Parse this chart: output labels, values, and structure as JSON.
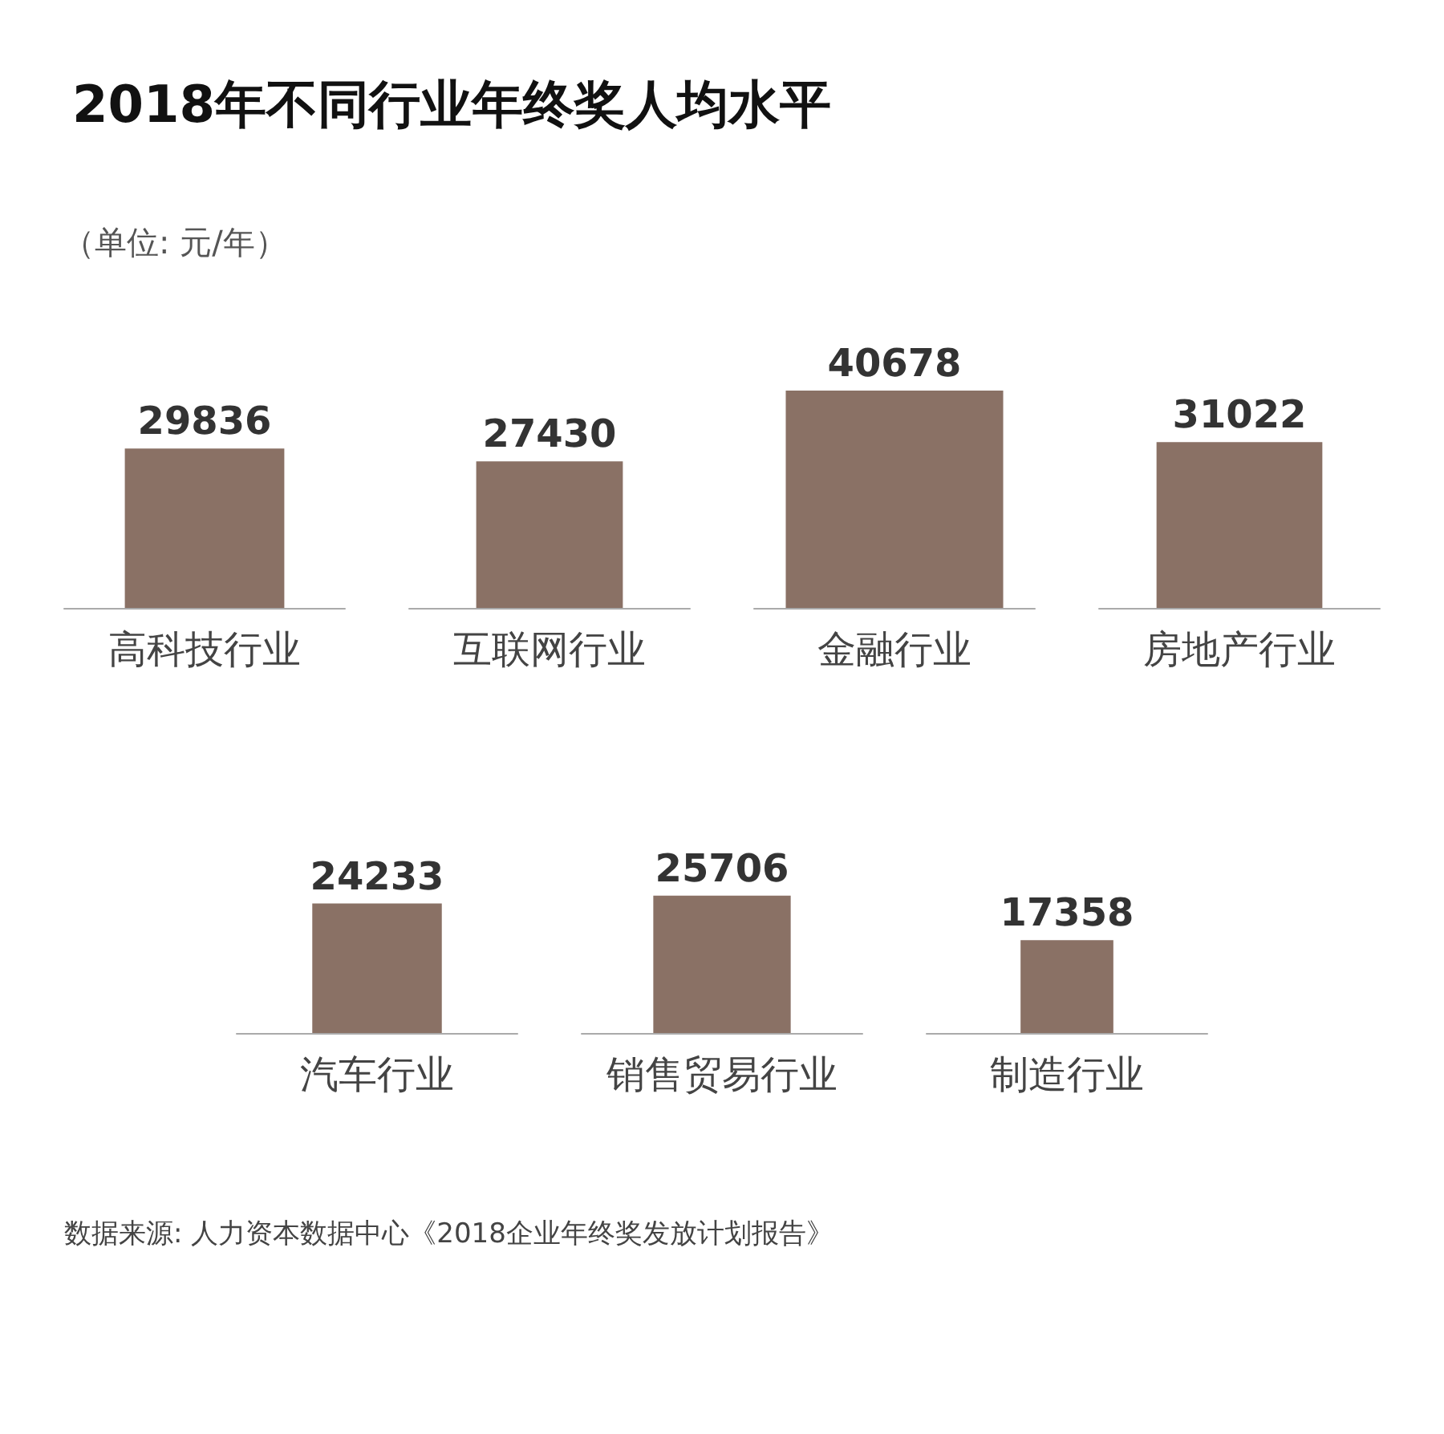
{
  "chart_data": [
    {
      "type": "bar",
      "title": "2018年不同行业年终奖人均水平",
      "subtitle": "（单位: 元/年）",
      "categories": [
        "高科技行业",
        "互联网行业",
        "金融行业",
        "房地产行业"
      ],
      "values": [
        29836,
        27430,
        40678,
        31022
      ],
      "color": "#8a7165",
      "data_labels": true
    },
    {
      "type": "bar",
      "categories": [
        "汽车行业",
        "销售贸易行业",
        "制造行业"
      ],
      "values": [
        24233,
        25706,
        17358
      ],
      "color": "#8a7165",
      "data_labels": true,
      "annotations": [
        "数据来源: 人力资本数据中心《2018企业年终奖发放计划报告》"
      ]
    }
  ]
}
